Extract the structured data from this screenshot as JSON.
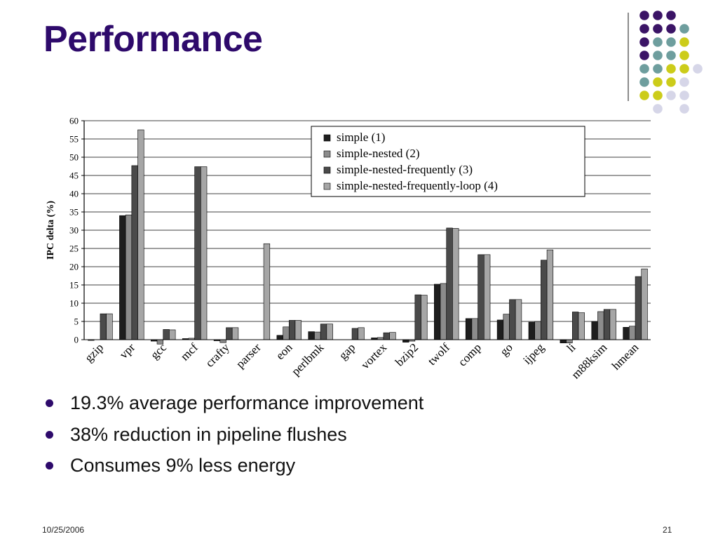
{
  "slide": {
    "title": "Performance",
    "bullets": [
      "19.3% average performance improvement",
      "38% reduction in pipeline flushes",
      "Consumes 9% less energy"
    ],
    "footer_date": "10/25/2006",
    "footer_page": "21",
    "colors": {
      "title": "#2e0a6b",
      "purple": "#3b1466",
      "teal": "#6e9e9e",
      "yellow": "#cccc1a",
      "lavender": "#d6d6e8"
    }
  },
  "chart_data": {
    "type": "bar",
    "title": "",
    "xlabel": "",
    "ylabel": "IPC delta (%)",
    "ylim": [
      0,
      60
    ],
    "yticks": [
      0,
      5,
      10,
      15,
      20,
      25,
      30,
      35,
      40,
      45,
      50,
      55,
      60
    ],
    "grid": true,
    "legend_position": "top-right",
    "categories": [
      "gzip",
      "vpr",
      "gcc",
      "mcf",
      "crafty",
      "parser",
      "eon",
      "perlbmk",
      "gap",
      "vortex",
      "bzip2",
      "twolf",
      "comp",
      "go",
      "ijpeg",
      "li",
      "m88ksim",
      "hmean"
    ],
    "series": [
      {
        "name": "simple (1)",
        "color": "#1e1e1e",
        "values": [
          -0.2,
          34,
          -0.4,
          0.3,
          -0.3,
          0,
          1.2,
          2.2,
          0,
          0.5,
          -0.7,
          15.2,
          5.8,
          5.4,
          4.8,
          -0.9,
          5,
          3.4
        ]
      },
      {
        "name": "simple-nested (2)",
        "color": "#8c8c8c",
        "values": [
          0,
          34.2,
          -1.2,
          0.4,
          -0.8,
          0,
          3.5,
          2.1,
          0,
          0.6,
          -0.4,
          15.4,
          5.8,
          7,
          5,
          -0.9,
          7.7,
          3.7
        ]
      },
      {
        "name": "simple-nested-frequently (3)",
        "color": "#4a4a4a",
        "values": [
          7.1,
          47.7,
          2.8,
          47.4,
          3.3,
          0,
          5.3,
          4.3,
          3.1,
          1.9,
          12.3,
          30.6,
          23.3,
          11,
          21.8,
          7.6,
          8.3,
          17.3
        ]
      },
      {
        "name": "simple-nested-frequently-loop (4)",
        "color": "#a6a6a6",
        "values": [
          7.1,
          57.5,
          2.7,
          47.4,
          3.3,
          26.3,
          5.3,
          4.3,
          3.3,
          2,
          12.2,
          30.5,
          23.3,
          11,
          24.6,
          7.4,
          8.3,
          19.4
        ]
      }
    ]
  }
}
